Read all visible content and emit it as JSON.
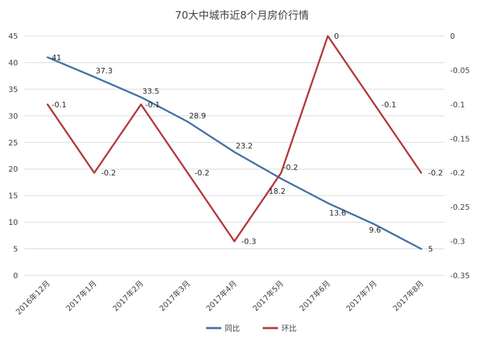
{
  "chart_data": {
    "type": "line",
    "title": "70大中城市近8个月房价行情",
    "categories": [
      "2016年12月",
      "2017年1月",
      "2017年2月",
      "2017年3月",
      "2017年4月",
      "2017年5月",
      "2017年6月",
      "2017年7月",
      "2017年8月"
    ],
    "series": [
      {
        "name": "同比",
        "axis": "left",
        "color": "#4472a6",
        "values": [
          41,
          37.3,
          33.5,
          28.9,
          23.2,
          18.2,
          13.6,
          9.6,
          5
        ],
        "labels": [
          "41",
          "37.3",
          "33.5",
          "28.9",
          "23.2",
          "18.2",
          "13.6",
          "9.6",
          "5"
        ]
      },
      {
        "name": "环比",
        "axis": "right",
        "color": "#b23a3e",
        "values": [
          -0.1,
          -0.2,
          -0.1,
          -0.2,
          -0.3,
          -0.2,
          0,
          -0.1,
          -0.2
        ],
        "labels": [
          "-0.1",
          "-0.2",
          "-0.1",
          "-0.2",
          "-0.3",
          "-0.2",
          "0",
          "-0.1",
          "-0.2"
        ]
      }
    ],
    "y_left": {
      "min": 0,
      "max": 45,
      "ticks": [
        "0",
        "5",
        "10",
        "15",
        "20",
        "25",
        "30",
        "35",
        "40",
        "45"
      ]
    },
    "y_right": {
      "min": -0.35,
      "max": 0,
      "ticks": [
        "-0.35",
        "-0.3",
        "-0.25",
        "-0.2",
        "-0.15",
        "-0.1",
        "-0.05",
        "0"
      ]
    },
    "grid": true,
    "legend_position": "bottom"
  }
}
